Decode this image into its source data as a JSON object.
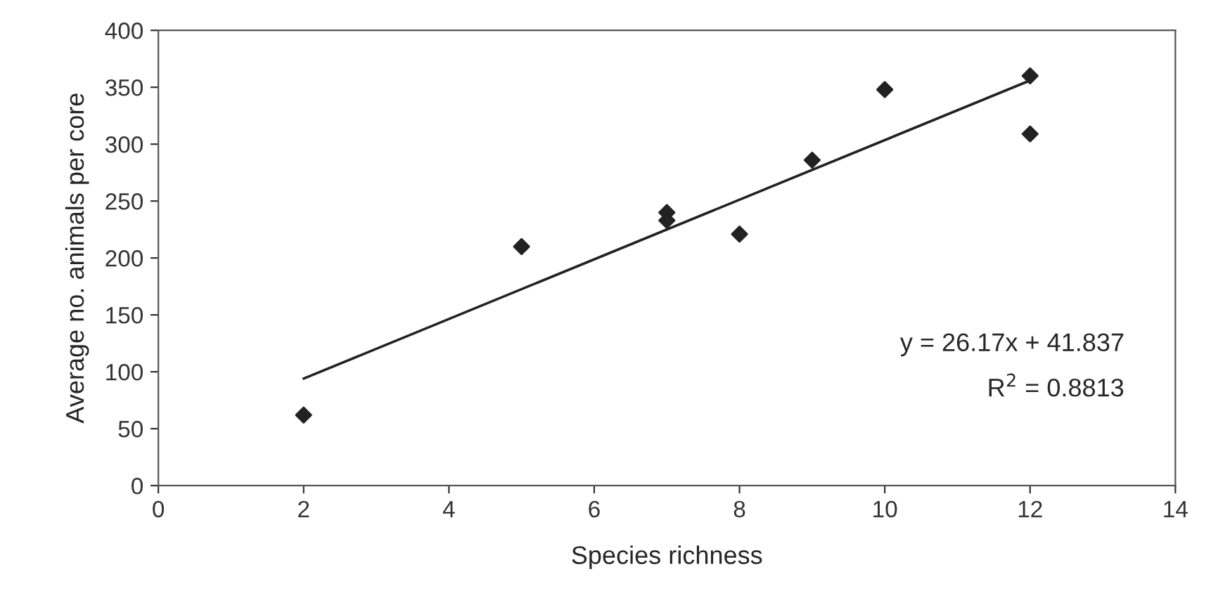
{
  "chart_data": {
    "type": "scatter",
    "xlabel": "Species richness",
    "ylabel": "Average no. animals per core",
    "xlim": [
      0,
      14
    ],
    "ylim": [
      0,
      400
    ],
    "xticks": [
      0,
      2,
      4,
      6,
      8,
      10,
      12,
      14
    ],
    "yticks": [
      0,
      50,
      100,
      150,
      200,
      250,
      300,
      350,
      400
    ],
    "grid": false,
    "series": [
      {
        "color": "#222222",
        "marker": "diamond",
        "x": [
          2,
          5,
          7,
          7,
          8,
          9,
          10,
          12,
          12
        ],
        "values": [
          62,
          210,
          240,
          233,
          221,
          286,
          348,
          360,
          309
        ]
      },
      {
        "type": "line",
        "color": "#222222",
        "x": [
          2,
          12
        ],
        "values": [
          94,
          356
        ]
      }
    ],
    "annotations": [
      "y = 26.17x + 41.837",
      "R$^{2}$ = 0.8813"
    ]
  }
}
